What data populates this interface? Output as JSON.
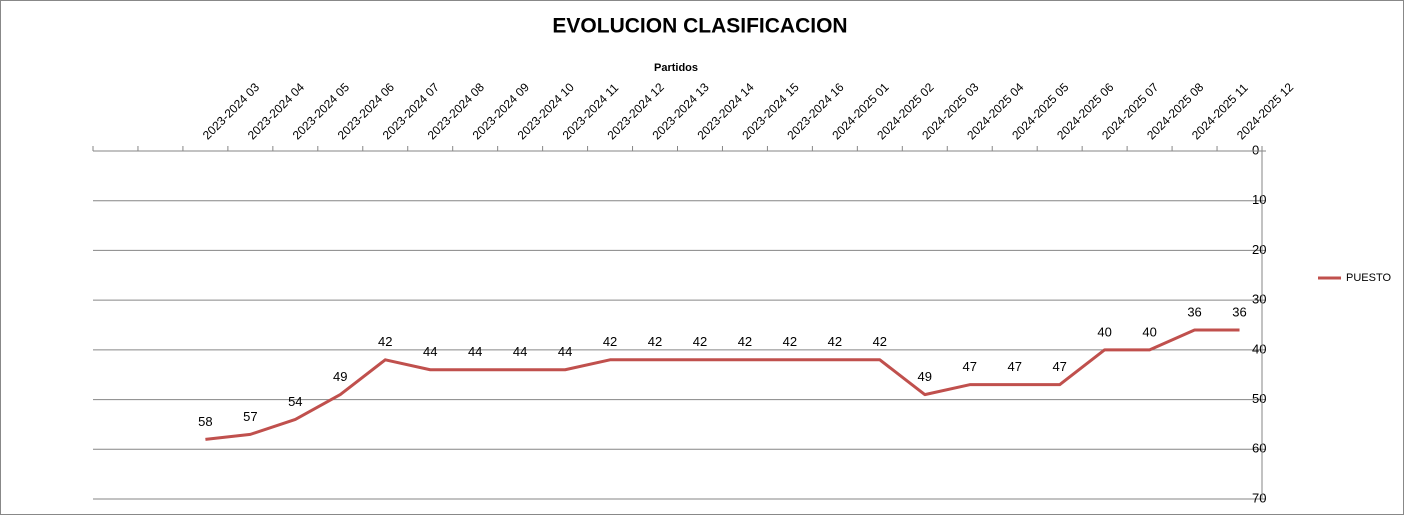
{
  "chart_data": {
    "type": "line",
    "title": "EVOLUCION CLASIFICACION",
    "x_label": "Partidos",
    "categories": [
      null,
      null,
      "2023-2024 03",
      "2023-2024 04",
      "2023-2024 05",
      "2023-2024 06",
      "2023-2024 07",
      "2023-2024 08",
      "2023-2024 09",
      "2023-2024 10",
      "2023-2024 11",
      "2023-2024 12",
      "2023-2024 13",
      "2023-2024 14",
      "2023-2024 15",
      "2023-2024 16",
      "2024-2025 01",
      "2024-2025 02",
      "2024-2025 03",
      "2024-2025 04",
      "2024-2025 05",
      "2024-2025 06",
      "2024-2025 07",
      "2024-2025 08",
      "2024-2025 11",
      "2024-2025 12"
    ],
    "series": [
      {
        "name": "PUESTO",
        "color": "#c0504d",
        "values": [
          null,
          null,
          58,
          57,
          54,
          49,
          42,
          44,
          44,
          44,
          44,
          42,
          42,
          42,
          42,
          42,
          42,
          42,
          49,
          47,
          47,
          47,
          40,
          40,
          36,
          36
        ]
      }
    ],
    "ylim": [
      0,
      70
    ],
    "yticks": [
      0,
      10,
      20,
      30,
      40,
      50,
      60,
      70
    ],
    "y_reversed": true,
    "y_axis_side": "right",
    "grid": true,
    "legend": "right"
  }
}
